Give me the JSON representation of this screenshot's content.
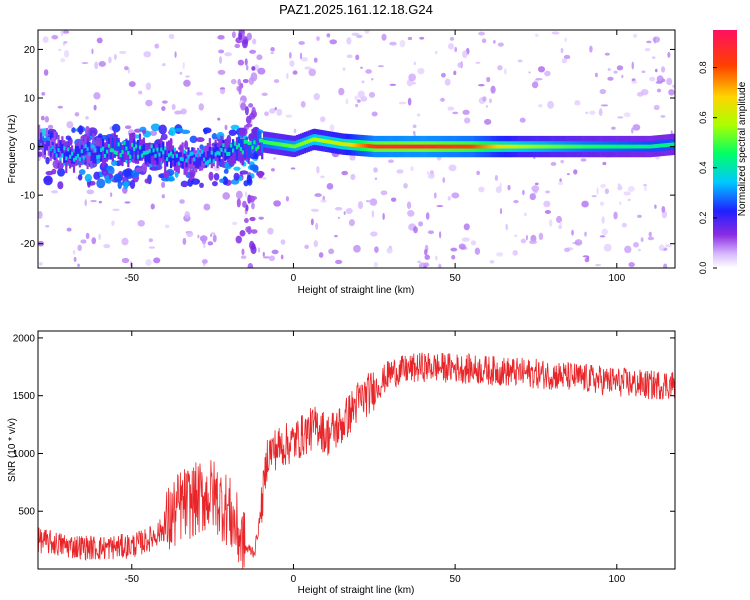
{
  "figure_title": "PAZ1.2025.161.12.18.G24",
  "colorbar": {
    "label": "Normalized spectral amplitude",
    "ticks": [
      0.0,
      0.2,
      0.4,
      0.6,
      0.8
    ],
    "tick_labels": [
      "0.0",
      "0.2",
      "0.4",
      "0.6",
      "0.8"
    ],
    "range": [
      0,
      0.95
    ]
  },
  "chart_data": [
    {
      "type": "heatmap",
      "xlabel": "Height of straight line (km)",
      "ylabel": "Frequency (Hz)",
      "xlim": [
        -79,
        118
      ],
      "ylim": [
        -25,
        24
      ],
      "xticks": [
        -50,
        0,
        50,
        100
      ],
      "xtick_labels": [
        "-50",
        "0",
        "50",
        "100"
      ],
      "yticks": [
        -20,
        -10,
        0,
        10,
        20
      ],
      "ytick_labels": [
        "-20",
        "-10",
        "0",
        "10",
        "20"
      ],
      "ridge": [
        {
          "x": -78,
          "y": 1,
          "v": 0.3
        },
        {
          "x": -70,
          "y": -2,
          "v": 0.4
        },
        {
          "x": -63,
          "y": -1,
          "v": 0.35
        },
        {
          "x": -55,
          "y": -0.5,
          "v": 0.45
        },
        {
          "x": -45,
          "y": -1,
          "v": 0.4
        },
        {
          "x": -38,
          "y": -2,
          "v": 0.4
        },
        {
          "x": -30,
          "y": -2.5,
          "v": 0.35
        },
        {
          "x": -22,
          "y": -1,
          "v": 0.4
        },
        {
          "x": -15,
          "y": 0,
          "v": 0.45
        },
        {
          "x": -10,
          "y": 1,
          "v": 0.5
        },
        {
          "x": 0,
          "y": 0,
          "v": 0.55
        },
        {
          "x": 6,
          "y": 1.5,
          "v": 0.6
        },
        {
          "x": 15,
          "y": 0.5,
          "v": 0.65
        },
        {
          "x": 25,
          "y": 0,
          "v": 0.9
        },
        {
          "x": 40,
          "y": 0,
          "v": 0.92
        },
        {
          "x": 55,
          "y": 0,
          "v": 0.85
        },
        {
          "x": 70,
          "y": 0,
          "v": 0.6
        },
        {
          "x": 90,
          "y": 0,
          "v": 0.5
        },
        {
          "x": 110,
          "y": 0,
          "v": 0.45
        },
        {
          "x": 118,
          "y": 0.5,
          "v": 0.45
        }
      ]
    },
    {
      "type": "line",
      "xlabel": "Height of straight line (km)",
      "ylabel": "SNR (10 * v/v)",
      "xlim": [
        -79,
        118
      ],
      "ylim": [
        0,
        2060
      ],
      "xticks": [
        -50,
        0,
        50,
        100
      ],
      "xtick_labels": [
        "-50",
        "0",
        "50",
        "100"
      ],
      "yticks": [
        500,
        1000,
        1500,
        2000
      ],
      "ytick_labels": [
        "500",
        "1000",
        "1500",
        "2000"
      ],
      "color": "#e8262a",
      "series": [
        {
          "x": [
            -79,
            -70,
            -60,
            -50,
            -45,
            -40,
            -35,
            -30,
            -25,
            -20,
            -15,
            -12,
            -10,
            -8,
            -5,
            0,
            5,
            8,
            10,
            15,
            20,
            25,
            30,
            40,
            50,
            60,
            70,
            80,
            90,
            100,
            110,
            118
          ],
          "y": [
            250,
            200,
            180,
            200,
            250,
            350,
            550,
            600,
            650,
            500,
            180,
            150,
            500,
            1000,
            1050,
            1100,
            1200,
            1250,
            1150,
            1250,
            1450,
            1550,
            1700,
            1750,
            1740,
            1720,
            1700,
            1680,
            1650,
            1620,
            1590,
            1600
          ]
        }
      ]
    }
  ]
}
